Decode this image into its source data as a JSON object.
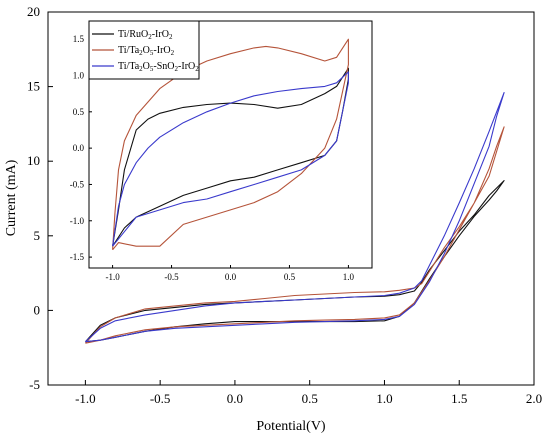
{
  "chart_data": [
    {
      "type": "line",
      "xlabel": "Potential(V)",
      "ylabel": "Current (mA)",
      "xlim": [
        -1.25,
        2.0
      ],
      "ylim": [
        -5,
        20
      ],
      "xticks": [
        -1.0,
        -0.5,
        0.0,
        0.5,
        1.0,
        1.5,
        2.0
      ],
      "yticks": [
        -5,
        0,
        5,
        10,
        15,
        20
      ],
      "xtick_labels": [
        "-1.0",
        "-0.5",
        "0.0",
        "0.5",
        "1.0",
        "1.5",
        "2.0"
      ],
      "ytick_labels": [
        "-5",
        "0",
        "5",
        "10",
        "15",
        "20"
      ],
      "grid": false,
      "series": [
        {
          "color": "#111111",
          "x": [
            -1.0,
            -0.9,
            -0.8,
            -0.6,
            -0.4,
            -0.2,
            0.0,
            0.2,
            0.4,
            0.6,
            0.8,
            1.0,
            1.1,
            1.2,
            1.25,
            1.3,
            1.4,
            1.5,
            1.6,
            1.7,
            1.8,
            1.75,
            1.7,
            1.6,
            1.5,
            1.4,
            1.3,
            1.2,
            1.1,
            1.0,
            0.8,
            0.6,
            0.4,
            0.2,
            0.0,
            -0.2,
            -0.4,
            -0.6,
            -0.8,
            -0.9,
            -1.0
          ],
          "y": [
            -2.1,
            -1.0,
            -0.5,
            0.0,
            0.2,
            0.4,
            0.5,
            0.6,
            0.7,
            0.8,
            0.9,
            0.95,
            1.05,
            1.3,
            1.9,
            2.7,
            4.0,
            5.3,
            6.4,
            7.7,
            8.7,
            8.0,
            7.4,
            6.3,
            5.0,
            3.6,
            2.1,
            0.5,
            -0.4,
            -0.7,
            -0.75,
            -0.75,
            -0.75,
            -0.75,
            -0.75,
            -0.9,
            -1.1,
            -1.4,
            -1.8,
            -2.0,
            -2.1
          ]
        },
        {
          "color": "#b5543a",
          "x": [
            -1.0,
            -0.9,
            -0.8,
            -0.6,
            -0.4,
            -0.2,
            0.0,
            0.2,
            0.4,
            0.6,
            0.8,
            1.0,
            1.1,
            1.2,
            1.25,
            1.3,
            1.4,
            1.5,
            1.6,
            1.7,
            1.8,
            1.75,
            1.7,
            1.6,
            1.5,
            1.4,
            1.3,
            1.2,
            1.1,
            1.0,
            0.8,
            0.6,
            0.4,
            0.2,
            0.0,
            -0.2,
            -0.4,
            -0.6,
            -0.8,
            -0.9,
            -1.0
          ],
          "y": [
            -2.2,
            -1.1,
            -0.5,
            0.1,
            0.3,
            0.5,
            0.6,
            0.8,
            1.0,
            1.1,
            1.2,
            1.25,
            1.35,
            1.5,
            1.8,
            2.6,
            4.2,
            5.6,
            7.2,
            9.0,
            12.3,
            11.0,
            9.5,
            7.2,
            5.4,
            3.6,
            2.0,
            0.5,
            -0.3,
            -0.5,
            -0.6,
            -0.65,
            -0.7,
            -0.8,
            -0.9,
            -1.0,
            -1.1,
            -1.3,
            -1.7,
            -2.0,
            -2.2
          ]
        },
        {
          "color": "#3a3acc",
          "x": [
            -1.0,
            -0.9,
            -0.8,
            -0.6,
            -0.4,
            -0.2,
            0.0,
            0.2,
            0.4,
            0.6,
            0.8,
            1.0,
            1.1,
            1.2,
            1.25,
            1.3,
            1.4,
            1.5,
            1.6,
            1.7,
            1.8,
            1.75,
            1.7,
            1.6,
            1.5,
            1.4,
            1.3,
            1.2,
            1.1,
            1.0,
            0.8,
            0.6,
            0.4,
            0.2,
            0.0,
            -0.2,
            -0.4,
            -0.6,
            -0.8,
            -0.9,
            -1.0
          ],
          "y": [
            -2.1,
            -1.2,
            -0.7,
            -0.3,
            0.0,
            0.3,
            0.5,
            0.6,
            0.7,
            0.8,
            0.9,
            1.0,
            1.15,
            1.5,
            2.0,
            3.0,
            5.0,
            7.2,
            9.5,
            12.0,
            14.6,
            13.0,
            11.0,
            8.5,
            6.0,
            3.8,
            1.9,
            0.4,
            -0.4,
            -0.6,
            -0.7,
            -0.75,
            -0.8,
            -0.9,
            -1.0,
            -1.1,
            -1.2,
            -1.4,
            -1.8,
            -2.0,
            -2.1
          ]
        }
      ]
    },
    {
      "type": "line",
      "xlim": [
        -1.2,
        1.2
      ],
      "ylim": [
        -1.65,
        1.75
      ],
      "xticks": [
        -1.0,
        -0.5,
        0.0,
        0.5,
        1.0
      ],
      "yticks": [
        -1.5,
        -1.0,
        -0.5,
        0.0,
        0.5,
        1.0,
        1.5
      ],
      "xtick_labels": [
        "-1.0",
        "-0.5",
        "0.0",
        "0.5",
        "1.0"
      ],
      "ytick_labels": [
        "-1.5",
        "-1.0",
        "-0.5",
        "0.0",
        "0.5",
        "1.0",
        "1.5"
      ],
      "grid": false,
      "legend": {
        "placement": "top-left",
        "entries": [
          {
            "parts": [
              "Ti/RuO",
              "2",
              "-IrO",
              "2"
            ]
          },
          {
            "parts": [
              "Ti/Ta",
              "2",
              "O",
              "5",
              "-IrO",
              "2"
            ]
          },
          {
            "parts": [
              "Ti/Ta",
              "2",
              "O",
              "5",
              "-SnO",
              "2",
              "-IrO",
              "2"
            ]
          }
        ]
      },
      "series": [
        {
          "name": "Ti/RuO2-IrO2",
          "color": "#111111",
          "x": [
            -1.0,
            -0.95,
            -0.9,
            -0.8,
            -0.7,
            -0.6,
            -0.4,
            -0.2,
            0.0,
            0.2,
            0.4,
            0.6,
            0.8,
            0.9,
            1.0,
            1.0,
            0.95,
            0.9,
            0.8,
            0.6,
            0.4,
            0.2,
            0.0,
            -0.2,
            -0.4,
            -0.6,
            -0.8,
            -0.9,
            -1.0
          ],
          "y": [
            -1.35,
            -0.85,
            -0.3,
            0.25,
            0.4,
            0.48,
            0.56,
            0.6,
            0.62,
            0.6,
            0.55,
            0.6,
            0.75,
            0.85,
            1.1,
            0.95,
            0.5,
            0.1,
            -0.1,
            -0.2,
            -0.3,
            -0.4,
            -0.45,
            -0.55,
            -0.65,
            -0.8,
            -0.95,
            -1.1,
            -1.35
          ]
        },
        {
          "name": "Ti/Ta2O5-IrO2",
          "color": "#b5543a",
          "x": [
            -1.0,
            -0.98,
            -0.95,
            -0.9,
            -0.8,
            -0.6,
            -0.4,
            -0.2,
            0.0,
            0.2,
            0.3,
            0.4,
            0.6,
            0.8,
            0.9,
            1.0,
            1.0,
            0.9,
            0.8,
            0.6,
            0.4,
            0.2,
            0.0,
            -0.2,
            -0.4,
            -0.6,
            -0.8,
            -0.95,
            -1.0
          ],
          "y": [
            -1.4,
            -0.9,
            -0.3,
            0.1,
            0.45,
            0.82,
            1.05,
            1.2,
            1.3,
            1.38,
            1.4,
            1.38,
            1.3,
            1.2,
            1.25,
            1.5,
            1.15,
            0.4,
            0.0,
            -0.35,
            -0.6,
            -0.75,
            -0.85,
            -0.95,
            -1.05,
            -1.35,
            -1.35,
            -1.3,
            -1.4
          ]
        },
        {
          "name": "Ti/Ta2O5-SnO2-IrO2",
          "color": "#3a3acc",
          "x": [
            -1.0,
            -0.95,
            -0.9,
            -0.8,
            -0.7,
            -0.6,
            -0.4,
            -0.2,
            0.0,
            0.2,
            0.4,
            0.6,
            0.8,
            0.9,
            1.0,
            1.0,
            0.95,
            0.9,
            0.8,
            0.6,
            0.4,
            0.2,
            0.0,
            -0.2,
            -0.4,
            -0.6,
            -0.8,
            -0.9,
            -1.0
          ],
          "y": [
            -1.35,
            -0.8,
            -0.5,
            -0.2,
            0.0,
            0.15,
            0.35,
            0.5,
            0.62,
            0.72,
            0.78,
            0.82,
            0.85,
            0.9,
            1.05,
            0.9,
            0.5,
            0.1,
            -0.1,
            -0.3,
            -0.4,
            -0.5,
            -0.6,
            -0.7,
            -0.75,
            -0.85,
            -0.95,
            -1.15,
            -1.35
          ]
        }
      ]
    }
  ]
}
